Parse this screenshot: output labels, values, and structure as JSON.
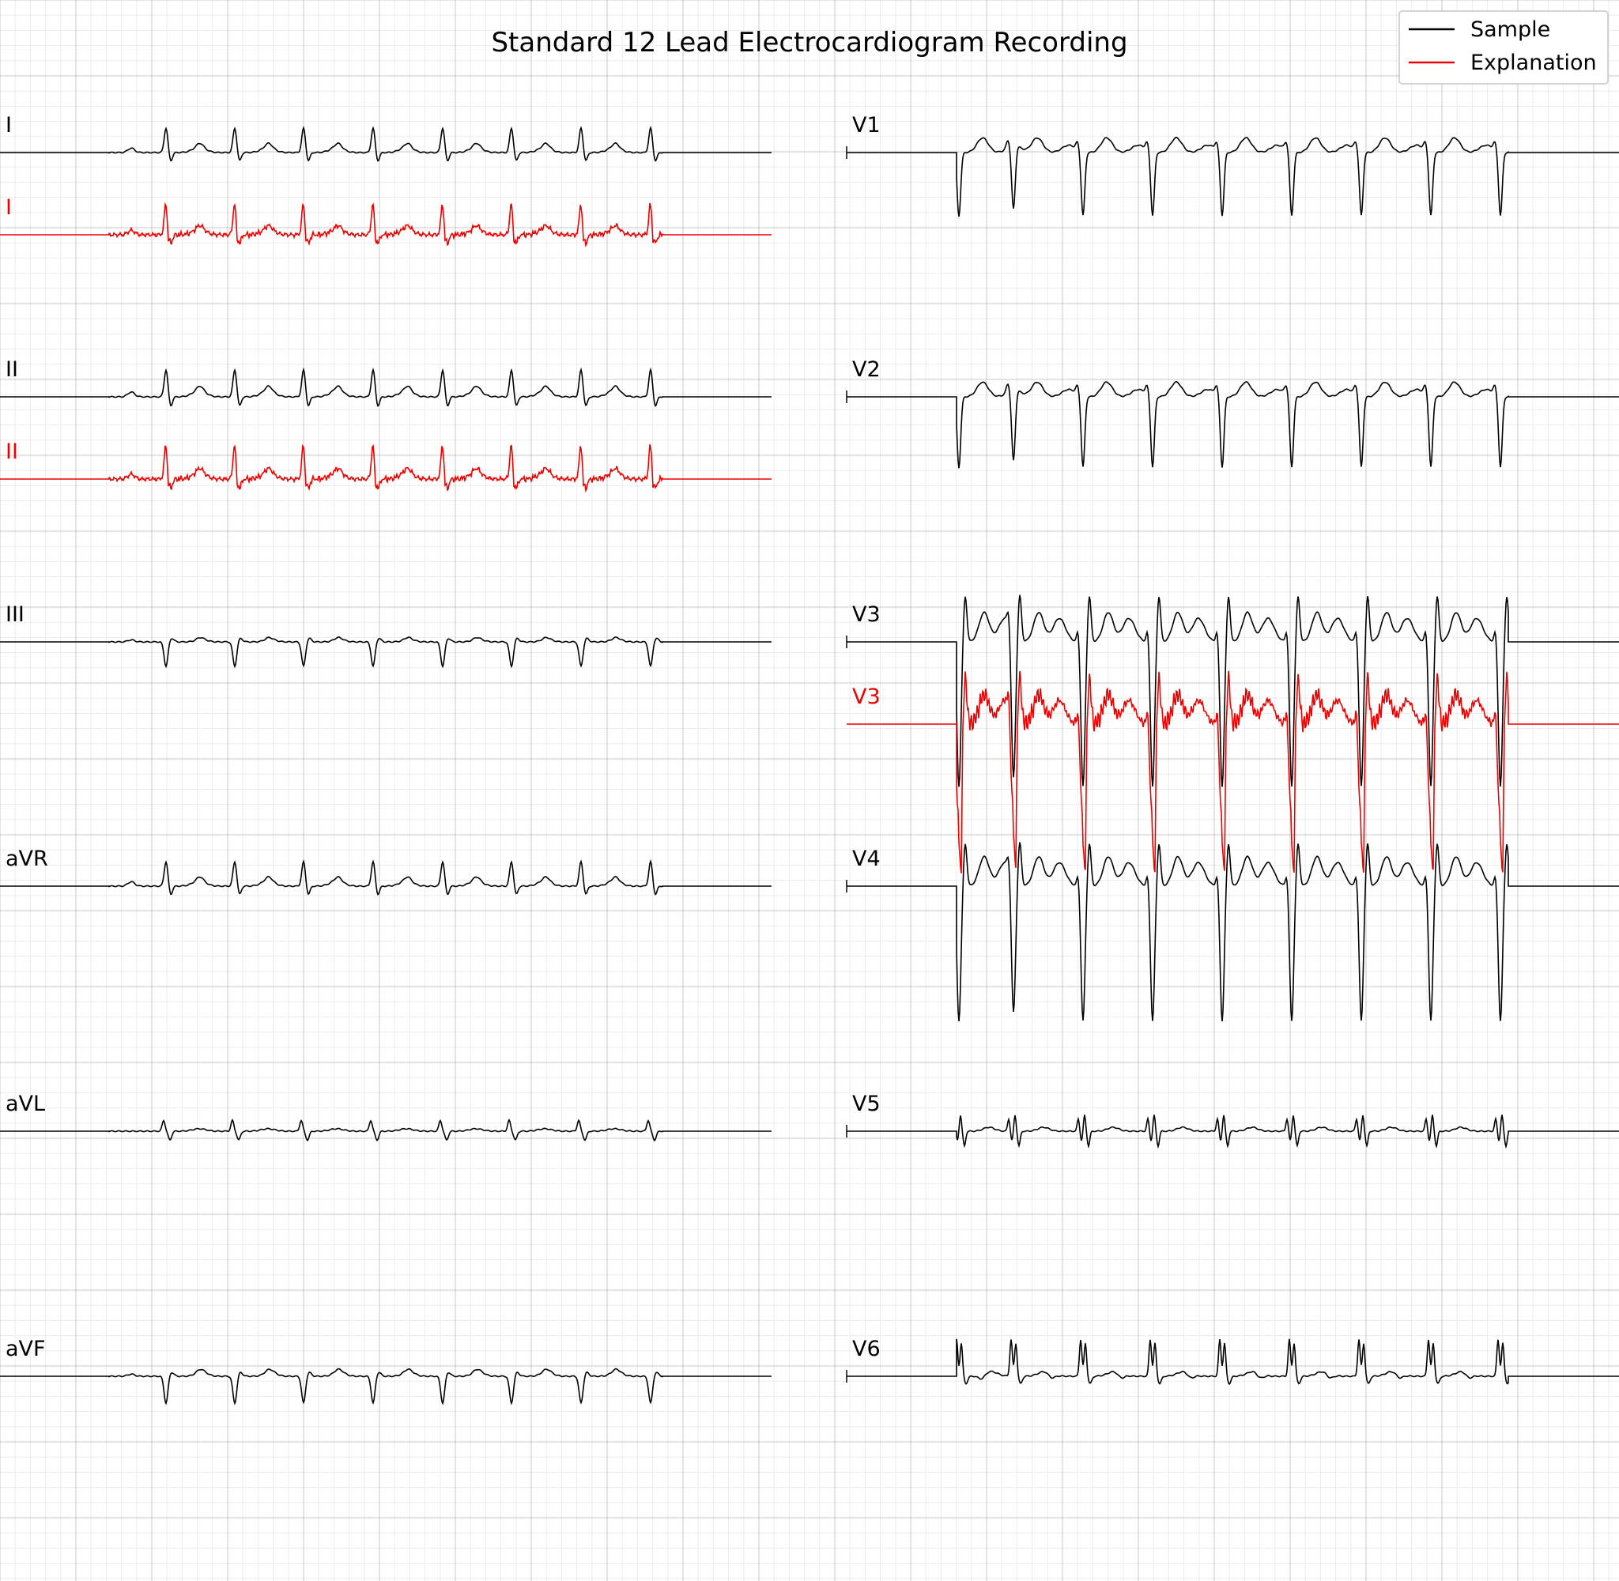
{
  "title": "Standard 12 Lead Electrocardiogram Recording",
  "legend": {
    "placement": "top-right",
    "entries": [
      {
        "label": "Sample",
        "color": "#000000"
      },
      {
        "label": "Explanation",
        "color": "#ee0000"
      }
    ]
  },
  "colors": {
    "sample": "#000000",
    "explanation": "#ee0000",
    "grid_major": "#c8c8c8",
    "grid_minor": "#ececec"
  },
  "chart_data": {
    "type": "line",
    "title": "Standard 12 Lead Electrocardiogram Recording",
    "grid": true,
    "beats_per_lead": 8,
    "leads": [
      {
        "name": "I",
        "column": 1,
        "row": 1,
        "morphology": "upright",
        "qrs_amplitude_mv": 0.5,
        "t_amplitude_mv": 0.1,
        "explanation": true
      },
      {
        "name": "II",
        "column": 1,
        "row": 2,
        "morphology": "upright",
        "qrs_amplitude_mv": 0.55,
        "t_amplitude_mv": 0.12,
        "explanation": true
      },
      {
        "name": "III",
        "column": 1,
        "row": 3,
        "morphology": "inverted",
        "qrs_amplitude_mv": 0.5,
        "t_amplitude_mv": 0.05,
        "explanation": false
      },
      {
        "name": "aVR",
        "column": 1,
        "row": 4,
        "morphology": "upright",
        "qrs_amplitude_mv": 0.5,
        "t_amplitude_mv": 0.1,
        "explanation": false
      },
      {
        "name": "aVL",
        "column": 1,
        "row": 5,
        "morphology": "biphasic",
        "qrs_amplitude_mv": 0.4,
        "t_amplitude_mv": 0.05,
        "explanation": false
      },
      {
        "name": "aVF",
        "column": 1,
        "row": 6,
        "morphology": "inverted",
        "qrs_amplitude_mv": 0.55,
        "t_amplitude_mv": 0.1,
        "explanation": false
      },
      {
        "name": "V1",
        "column": 2,
        "row": 1,
        "morphology": "deep-s",
        "qrs_amplitude_mv": 1.3,
        "t_amplitude_mv": 0.3,
        "explanation": false
      },
      {
        "name": "V2",
        "column": 2,
        "row": 2,
        "morphology": "deep-s",
        "qrs_amplitude_mv": 1.45,
        "t_amplitude_mv": 0.3,
        "explanation": false
      },
      {
        "name": "V3",
        "column": 2,
        "row": 3,
        "morphology": "rs-tall-t",
        "qrs_amplitude_mv": 2.95,
        "t_amplitude_mv": 0.6,
        "explanation": true
      },
      {
        "name": "V4",
        "column": 2,
        "row": 4,
        "morphology": "rs-tall-t",
        "qrs_amplitude_mv": 2.75,
        "t_amplitude_mv": 0.6,
        "explanation": false
      },
      {
        "name": "V5",
        "column": 2,
        "row": 5,
        "morphology": "fragmented",
        "qrs_amplitude_mv": 0.55,
        "t_amplitude_mv": 0.08,
        "explanation": false
      },
      {
        "name": "V6",
        "column": 2,
        "row": 6,
        "morphology": "upright-notched",
        "qrs_amplitude_mv": 0.75,
        "t_amplitude_mv": 0.1,
        "explanation": false
      }
    ]
  }
}
